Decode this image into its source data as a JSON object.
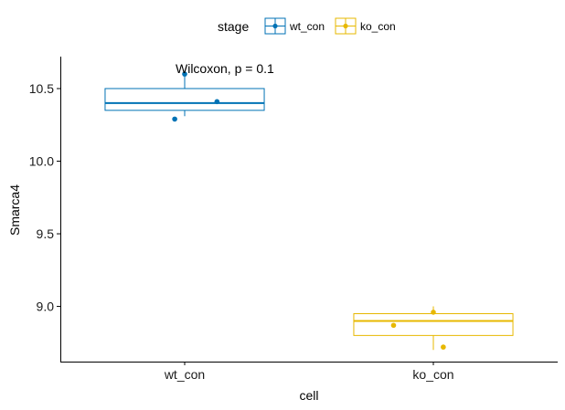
{
  "chart_data": {
    "type": "box",
    "xlabel": "cell",
    "ylabel": "Smarca4",
    "categories": [
      "wt_con",
      "ko_con"
    ],
    "ylim": [
      8.62,
      10.72
    ],
    "yticks": [
      9.0,
      9.5,
      10.0,
      10.5
    ],
    "grid": false,
    "legend": {
      "title": "stage",
      "placement": "top",
      "entries": [
        "wt_con",
        "ko_con"
      ]
    },
    "annotation": "Wilcoxon, p = 0.1",
    "series": [
      {
        "name": "wt_con",
        "color": "#0072B5",
        "box": {
          "whisker_low": 10.31,
          "q1": 10.35,
          "median": 10.4,
          "q3": 10.5,
          "whisker_high": 10.62
        },
        "points": [
          {
            "x_offset": 0.0,
            "y": 10.6
          },
          {
            "x_offset": 0.13,
            "y": 10.41
          },
          {
            "x_offset": -0.04,
            "y": 10.29
          }
        ]
      },
      {
        "name": "ko_con",
        "color": "#E7B800",
        "box": {
          "whisker_low": 8.7,
          "q1": 8.8,
          "median": 8.9,
          "q3": 8.95,
          "whisker_high": 9.0
        },
        "points": [
          {
            "x_offset": 0.0,
            "y": 8.96
          },
          {
            "x_offset": -0.16,
            "y": 8.87
          },
          {
            "x_offset": 0.04,
            "y": 8.72
          }
        ]
      }
    ]
  }
}
